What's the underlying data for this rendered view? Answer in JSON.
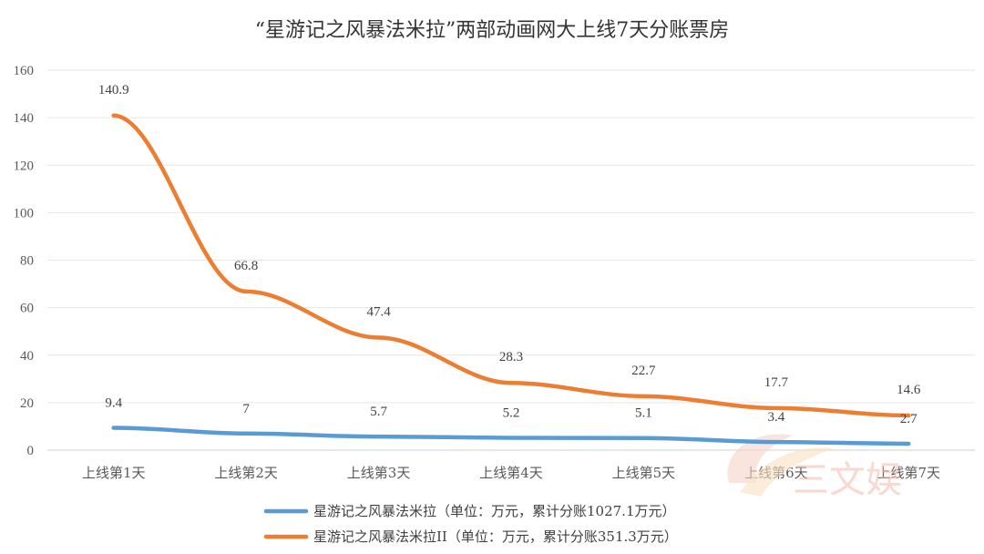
{
  "chart_data": {
    "type": "line",
    "title": "“星游记之风暴法米拉”两部动画网大上线7天分账票房",
    "categories": [
      "上线第1天",
      "上线第2天",
      "上线第3天",
      "上线第4天",
      "上线第5天",
      "上线第6天",
      "上线第7天"
    ],
    "ylim": [
      0,
      160
    ],
    "yticks": [
      0,
      20,
      40,
      60,
      80,
      100,
      120,
      140,
      160
    ],
    "grid": true,
    "legend_position": "bottom",
    "series": [
      {
        "name": "星游记之风暴法米拉（单位：万元，累计分账1027.1万元）",
        "color": "#5B9BD5",
        "values": [
          9.4,
          7,
          5.7,
          5.2,
          5.1,
          3.4,
          2.7
        ],
        "labels": [
          "9.4",
          "7",
          "5.7",
          "5.2",
          "5.1",
          "3.4",
          "2.7"
        ]
      },
      {
        "name": "星游记之风暴法米拉II（单位：万元，累计分账351.3万元）",
        "color": "#ED7D31",
        "values": [
          140.9,
          66.8,
          47.4,
          28.3,
          22.7,
          17.7,
          14.6
        ],
        "labels": [
          "140.9",
          "66.8",
          "47.4",
          "28.3",
          "22.7",
          "17.7",
          "14.6"
        ]
      }
    ]
  },
  "watermark": {
    "text": "三文娱",
    "color": "#f4b9ad"
  }
}
